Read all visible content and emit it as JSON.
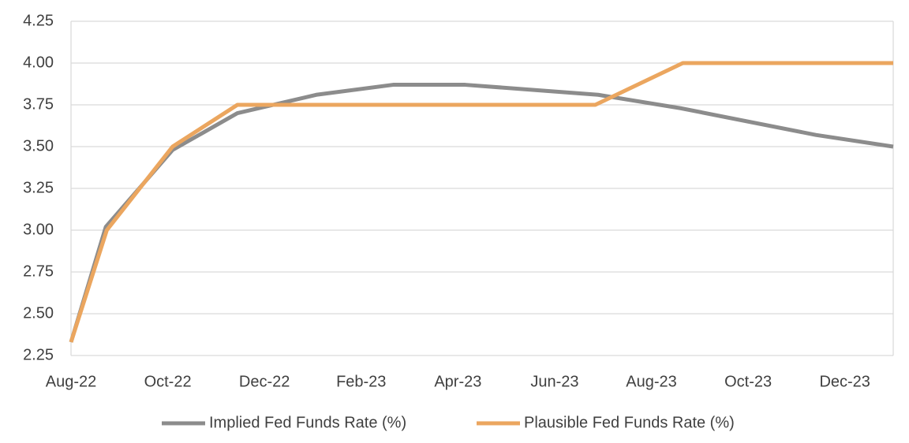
{
  "chart_data": {
    "type": "line",
    "xlim": [
      0,
      17
    ],
    "xticks": [
      {
        "value": 0,
        "label": "Aug-22"
      },
      {
        "value": 2,
        "label": "Oct-22"
      },
      {
        "value": 4,
        "label": "Dec-22"
      },
      {
        "value": 6,
        "label": "Feb-23"
      },
      {
        "value": 8,
        "label": "Apr-23"
      },
      {
        "value": 10,
        "label": "Jun-23"
      },
      {
        "value": 12,
        "label": "Aug-23"
      },
      {
        "value": 14,
        "label": "Oct-23"
      },
      {
        "value": 16,
        "label": "Dec-23"
      }
    ],
    "ylim": [
      2.25,
      4.25
    ],
    "yticks": [
      {
        "value": 2.25,
        "label": "2.25"
      },
      {
        "value": 2.5,
        "label": "2.50"
      },
      {
        "value": 2.75,
        "label": "2.75"
      },
      {
        "value": 3,
        "label": "3.00"
      },
      {
        "value": 3.25,
        "label": "3.25"
      },
      {
        "value": 3.5,
        "label": "3.50"
      },
      {
        "value": 3.75,
        "label": "3.75"
      },
      {
        "value": 4,
        "label": "4.00"
      },
      {
        "value": 4.25,
        "label": "4.25"
      }
    ],
    "grid": true,
    "legend": "bottom",
    "series": [
      {
        "name": "Implied Fed Funds Rate (%)",
        "color": "#8c8c8c",
        "x": [
          0,
          0.72,
          2.1,
          3.44,
          5.07,
          6.66,
          8.15,
          10.9,
          12.6,
          15.4,
          17
        ],
        "values": [
          2.33,
          3.02,
          3.48,
          3.7,
          3.81,
          3.87,
          3.87,
          3.81,
          3.73,
          3.57,
          3.5
        ]
      },
      {
        "name": "Plausible Fed Funds Rate (%)",
        "color": "#eba65f",
        "x": [
          0,
          0.74,
          2.1,
          3.44,
          10.84,
          12.65,
          17
        ],
        "values": [
          2.33,
          3.0,
          3.5,
          3.75,
          3.75,
          4.0,
          4.0
        ]
      }
    ]
  }
}
